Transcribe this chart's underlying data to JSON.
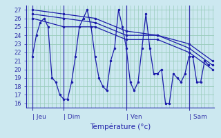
{
  "xlabel": "Température (°c)",
  "bg_color": "#cce8f0",
  "grid_color": "#99ccbb",
  "line_color": "#1a1aaa",
  "ylim": [
    15.5,
    27.5
  ],
  "xlim": [
    -0.5,
    47.5
  ],
  "yticks": [
    16,
    17,
    18,
    19,
    20,
    21,
    22,
    23,
    24,
    25,
    26,
    27
  ],
  "day_positions": [
    1,
    9,
    25,
    41
  ],
  "day_labels": [
    "| Jeu",
    "| Dim",
    "| Ven",
    "| Sam"
  ],
  "minor_xticks_step": 1,
  "series1_x": [
    1,
    2,
    3,
    4,
    5,
    6,
    7,
    8,
    9,
    10,
    11,
    12,
    13,
    14,
    15,
    16,
    17,
    18,
    19,
    20,
    21,
    22,
    23,
    24,
    25,
    26,
    27,
    28,
    29,
    30,
    31,
    32,
    33,
    34,
    35,
    36,
    37,
    38,
    39,
    40,
    41,
    42,
    43,
    44,
    45,
    46
  ],
  "series1_y": [
    21.5,
    24.0,
    25.5,
    26.0,
    25.0,
    19.0,
    18.5,
    17.0,
    16.5,
    16.5,
    18.5,
    21.5,
    25.0,
    26.0,
    27.0,
    25.0,
    21.5,
    19.0,
    18.0,
    17.5,
    21.0,
    22.5,
    27.0,
    25.0,
    22.5,
    18.5,
    17.5,
    18.5,
    22.5,
    26.5,
    22.5,
    19.5,
    19.5,
    20.0,
    16.0,
    16.0,
    19.5,
    19.0,
    18.5,
    19.5,
    21.5,
    21.5,
    18.5,
    18.5,
    21.0,
    20.5
  ],
  "series2_x": [
    1,
    9,
    17,
    25,
    33,
    41,
    47
  ],
  "series2_y": [
    27.0,
    26.5,
    26.0,
    24.5,
    24.0,
    23.0,
    21.0
  ],
  "series3_x": [
    1,
    9,
    17,
    25,
    33,
    41,
    47
  ],
  "series3_y": [
    26.5,
    26.0,
    25.5,
    24.0,
    24.0,
    22.5,
    20.5
  ],
  "series4_x": [
    1,
    9,
    17,
    25,
    33,
    41,
    47
  ],
  "series4_y": [
    26.0,
    25.0,
    25.0,
    23.5,
    23.5,
    22.0,
    20.0
  ]
}
